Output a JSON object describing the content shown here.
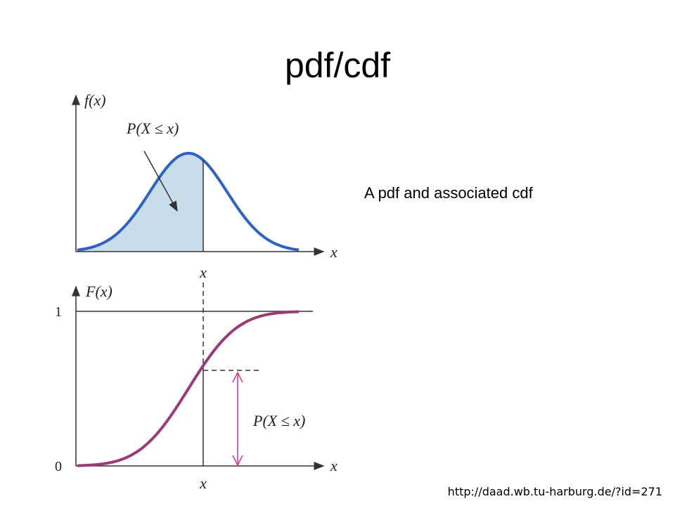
{
  "title": "pdf/cdf",
  "caption": "A pdf and associated cdf",
  "source": "http://daad.wb.tu-harburg.de/?id=271",
  "pdf_plot": {
    "y_label": "f(x)",
    "x_label": "x",
    "x_marker": "x",
    "area_label": "P(X ≤ x)"
  },
  "cdf_plot": {
    "y_label": "F(x)",
    "x_label": "x",
    "x_marker": "x",
    "y_top": "1",
    "y_bottom": "0",
    "interval_label": "P(X ≤ x)"
  }
}
